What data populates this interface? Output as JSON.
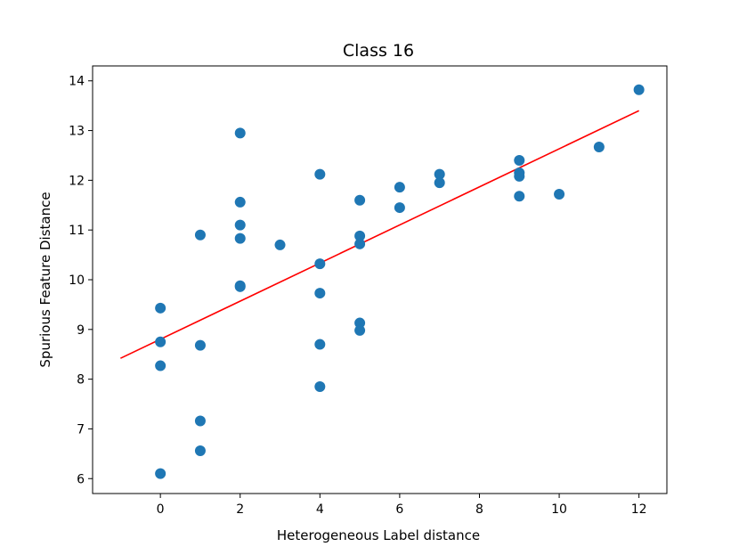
{
  "chart_data": {
    "type": "scatter",
    "title": "Class 16",
    "xlabel": "Heterogeneous Label distance",
    "ylabel": "Spurious Feature Distance",
    "xlim": [
      -1.7,
      12.7
    ],
    "ylim": [
      5.7,
      14.3
    ],
    "xticks": [
      0,
      2,
      4,
      6,
      8,
      10,
      12
    ],
    "yticks": [
      6,
      7,
      8,
      9,
      10,
      11,
      12,
      13,
      14
    ],
    "grid": false,
    "point_color": "#1f77b4",
    "points": [
      {
        "x": 0,
        "y": 9.43
      },
      {
        "x": 0,
        "y": 8.75
      },
      {
        "x": 0,
        "y": 8.27
      },
      {
        "x": 0,
        "y": 6.1
      },
      {
        "x": 1,
        "y": 10.9
      },
      {
        "x": 1,
        "y": 8.68
      },
      {
        "x": 1,
        "y": 7.16
      },
      {
        "x": 1,
        "y": 6.56
      },
      {
        "x": 2,
        "y": 12.95
      },
      {
        "x": 2,
        "y": 11.56
      },
      {
        "x": 2,
        "y": 11.1
      },
      {
        "x": 2,
        "y": 10.83
      },
      {
        "x": 2,
        "y": 9.88
      },
      {
        "x": 2,
        "y": 9.86
      },
      {
        "x": 3,
        "y": 10.7
      },
      {
        "x": 4,
        "y": 12.12
      },
      {
        "x": 4,
        "y": 10.32
      },
      {
        "x": 4,
        "y": 9.73
      },
      {
        "x": 4,
        "y": 8.7
      },
      {
        "x": 4,
        "y": 7.85
      },
      {
        "x": 5,
        "y": 11.6
      },
      {
        "x": 5,
        "y": 10.88
      },
      {
        "x": 5,
        "y": 10.72
      },
      {
        "x": 5,
        "y": 9.13
      },
      {
        "x": 5,
        "y": 8.98
      },
      {
        "x": 6,
        "y": 11.86
      },
      {
        "x": 6,
        "y": 11.45
      },
      {
        "x": 7,
        "y": 12.12
      },
      {
        "x": 7,
        "y": 11.95
      },
      {
        "x": 9,
        "y": 12.4
      },
      {
        "x": 9,
        "y": 12.15
      },
      {
        "x": 9,
        "y": 12.08
      },
      {
        "x": 9,
        "y": 11.68
      },
      {
        "x": 10,
        "y": 11.72
      },
      {
        "x": 11,
        "y": 12.67
      },
      {
        "x": 12,
        "y": 13.82
      }
    ],
    "fit_line": {
      "color": "#ff0000",
      "x": [
        -1,
        12
      ],
      "y": [
        8.42,
        13.4
      ]
    }
  }
}
